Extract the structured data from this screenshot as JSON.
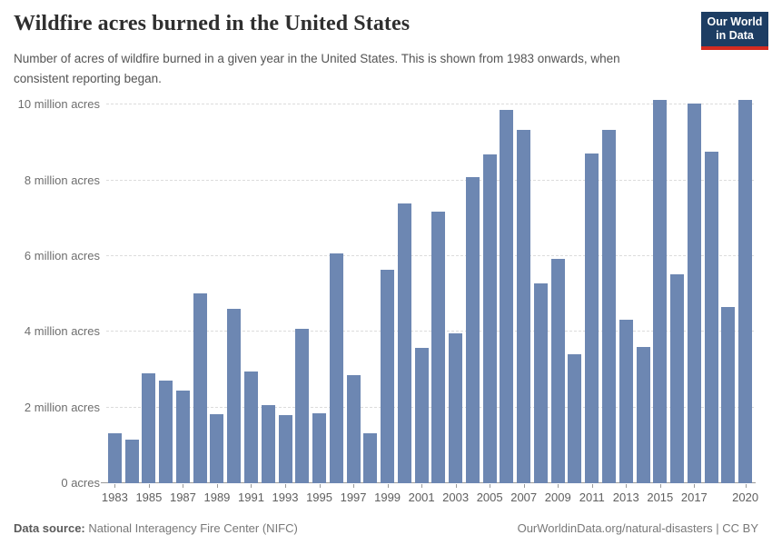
{
  "header": {
    "title": "Wildfire acres burned in the United States",
    "subtitle": "Number of acres of wildfire burned in a given year in the United States. This is shown from 1983 onwards, when consistent reporting began.",
    "logo": {
      "line1": "Our World",
      "line2": "in Data"
    }
  },
  "chart_data": {
    "type": "bar",
    "title": "Wildfire acres burned in the United States",
    "unit": "million acres",
    "categories": [
      1983,
      1984,
      1985,
      1986,
      1987,
      1988,
      1989,
      1990,
      1991,
      1992,
      1993,
      1994,
      1995,
      1996,
      1997,
      1998,
      1999,
      2000,
      2001,
      2002,
      2003,
      2004,
      2005,
      2006,
      2007,
      2008,
      2009,
      2010,
      2011,
      2012,
      2013,
      2014,
      2015,
      2016,
      2017,
      2018,
      2019,
      2020
    ],
    "values": [
      1.32,
      1.15,
      2.9,
      2.72,
      2.45,
      5.01,
      1.83,
      4.62,
      2.95,
      2.07,
      1.8,
      4.07,
      1.84,
      6.07,
      2.86,
      1.33,
      5.63,
      7.39,
      3.57,
      7.18,
      3.96,
      8.1,
      8.69,
      9.87,
      9.33,
      5.29,
      5.92,
      3.42,
      8.71,
      9.33,
      4.32,
      3.6,
      10.13,
      5.51,
      10.03,
      8.77,
      4.66,
      10.12
    ],
    "ylim": [
      0,
      10.25
    ],
    "yticks": [
      {
        "value": 0,
        "label": "0 acres"
      },
      {
        "value": 2,
        "label": "2 million acres"
      },
      {
        "value": 4,
        "label": "4 million acres"
      },
      {
        "value": 6,
        "label": "6 million acres"
      },
      {
        "value": 8,
        "label": "8 million acres"
      },
      {
        "value": 10,
        "label": "10 million acres"
      }
    ],
    "xticks": [
      "1983",
      "1985",
      "1987",
      "1989",
      "1991",
      "1993",
      "1995",
      "1997",
      "1999",
      "2001",
      "2003",
      "2005",
      "2007",
      "2009",
      "2011",
      "2013",
      "2015",
      "2017",
      "2020"
    ],
    "grid": "horizontal-dashed",
    "legend": "none",
    "bar_color": "#6d87b2"
  },
  "footer": {
    "source_label": "Data source:",
    "source_value": " National Interagency Fire Center (NIFC)",
    "link": "OurWorldinData.org/natural-disasters | CC BY"
  },
  "colors": {
    "bar": "#6d87b2",
    "logo_navy": "#1d3d63",
    "logo_red": "#d42b20",
    "gridline": "#dcdcdc",
    "axis": "#9a9a9a"
  }
}
